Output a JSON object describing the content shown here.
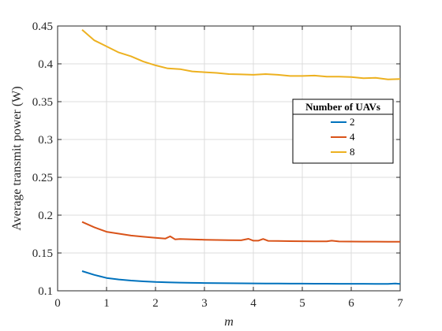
{
  "chart_data": {
    "type": "line",
    "title": "",
    "xlabel": "m",
    "ylabel": "Average transmit power (W)",
    "xlim": [
      0,
      7
    ],
    "ylim": [
      0.1,
      0.45
    ],
    "x_ticks": [
      "0",
      "1",
      "2",
      "3",
      "4",
      "5",
      "6",
      "7"
    ],
    "y_ticks": [
      "0.1",
      "0.15",
      "0.2",
      "0.25",
      "0.3",
      "0.35",
      "0.4",
      "0.45"
    ],
    "grid": true,
    "legend": {
      "title": "Number of UAVs",
      "placement": "right"
    },
    "series": [
      {
        "name": "2",
        "color": "#0072BD",
        "x": [
          0.5,
          0.75,
          1.0,
          1.25,
          1.5,
          1.75,
          2.0,
          2.25,
          2.5,
          2.75,
          3.0,
          3.25,
          3.5,
          3.75,
          4.0,
          4.25,
          4.5,
          4.75,
          5.0,
          5.25,
          5.5,
          5.75,
          6.0,
          6.25,
          6.5,
          6.75,
          6.9,
          7.0
        ],
        "y": [
          0.126,
          0.121,
          0.117,
          0.115,
          0.1135,
          0.1125,
          0.1117,
          0.1112,
          0.1108,
          0.1105,
          0.1103,
          0.1101,
          0.11,
          0.1099,
          0.1098,
          0.1097,
          0.1096,
          0.1095,
          0.1095,
          0.1094,
          0.1094,
          0.1093,
          0.1093,
          0.1093,
          0.1092,
          0.1092,
          0.1096,
          0.1092
        ]
      },
      {
        "name": "4",
        "color": "#D95319",
        "x": [
          0.5,
          0.75,
          1.0,
          1.25,
          1.5,
          1.75,
          2.0,
          2.2,
          2.3,
          2.4,
          2.5,
          2.75,
          3.0,
          3.25,
          3.5,
          3.75,
          3.9,
          4.0,
          4.1,
          4.2,
          4.3,
          4.5,
          4.75,
          5.0,
          5.25,
          5.5,
          5.6,
          5.75,
          6.0,
          6.25,
          6.5,
          6.75,
          7.0
        ],
        "y": [
          0.191,
          0.184,
          0.178,
          0.1755,
          0.173,
          0.1715,
          0.17,
          0.169,
          0.172,
          0.168,
          0.1685,
          0.168,
          0.1675,
          0.1672,
          0.167,
          0.1668,
          0.1688,
          0.1662,
          0.1663,
          0.1685,
          0.166,
          0.1658,
          0.1656,
          0.1655,
          0.1654,
          0.1653,
          0.1662,
          0.1652,
          0.1651,
          0.165,
          0.165,
          0.1649,
          0.1648
        ]
      },
      {
        "name": "8",
        "color": "#EDB120",
        "x": [
          0.5,
          0.75,
          1.0,
          1.25,
          1.5,
          1.75,
          2.0,
          2.25,
          2.5,
          2.75,
          3.0,
          3.25,
          3.5,
          3.75,
          4.0,
          4.25,
          4.5,
          4.75,
          5.0,
          5.25,
          5.5,
          5.75,
          6.0,
          6.25,
          6.5,
          6.75,
          7.0
        ],
        "y": [
          0.445,
          0.431,
          0.423,
          0.415,
          0.41,
          0.403,
          0.398,
          0.394,
          0.393,
          0.39,
          0.389,
          0.388,
          0.3865,
          0.386,
          0.3855,
          0.3865,
          0.3855,
          0.384,
          0.384,
          0.3845,
          0.383,
          0.383,
          0.3825,
          0.381,
          0.3815,
          0.3795,
          0.38
        ]
      }
    ]
  }
}
